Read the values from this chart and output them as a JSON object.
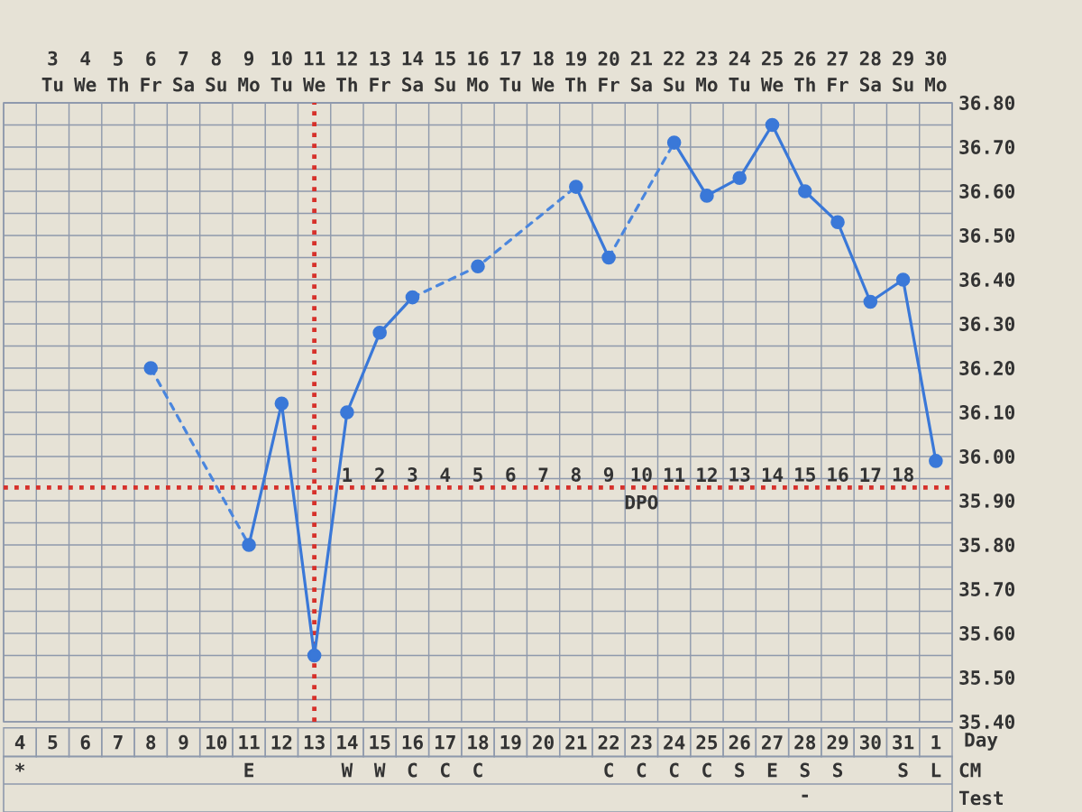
{
  "chart_data": [
    {
      "type": "line",
      "categories": [
        "4",
        "5",
        "6",
        "7",
        "8",
        "9",
        "10",
        "11",
        "12",
        "13",
        "14",
        "15",
        "16",
        "17",
        "18",
        "19",
        "20",
        "21",
        "22",
        "23",
        "24",
        "25",
        "26",
        "27",
        "28",
        "29",
        "30",
        "31",
        "1"
      ],
      "xlabel": "Day",
      "x2lim": [
        1.5,
        30.5
      ],
      "x2ticks": [
        {
          "value": 3,
          "label": "3 Tu"
        },
        {
          "value": 4,
          "label": "4 We"
        },
        {
          "value": 5,
          "label": "5 Th"
        },
        {
          "value": 6,
          "label": "6 Fr"
        },
        {
          "value": 7,
          "label": "7 Sa"
        },
        {
          "value": 8,
          "label": "8 Su"
        },
        {
          "value": 9,
          "label": "9 Mo"
        },
        {
          "value": 10,
          "label": "10 Tu"
        },
        {
          "value": 11,
          "label": "11 We"
        },
        {
          "value": 12,
          "label": "12 Th"
        },
        {
          "value": 13,
          "label": "13 Fr"
        },
        {
          "value": 14,
          "label": "14 Sa"
        },
        {
          "value": 15,
          "label": "15 Su"
        },
        {
          "value": 16,
          "label": "16 Mo"
        },
        {
          "value": 17,
          "label": "17 Tu"
        },
        {
          "value": 18,
          "label": "18 We"
        },
        {
          "value": 19,
          "label": "19 Th"
        },
        {
          "value": 20,
          "label": "20 Fr"
        },
        {
          "value": 21,
          "label": "21 Sa"
        },
        {
          "value": 22,
          "label": "22 Su"
        },
        {
          "value": 23,
          "label": "23 Mo"
        },
        {
          "value": 24,
          "label": "24 Tu"
        },
        {
          "value": 25,
          "label": "25 We"
        },
        {
          "value": 26,
          "label": "26 Th"
        },
        {
          "value": 27,
          "label": "27 Fr"
        },
        {
          "value": 28,
          "label": "28 Sa"
        },
        {
          "value": 29,
          "label": "29 Su"
        },
        {
          "value": 30,
          "label": "30 Mo"
        }
      ],
      "ylim": [
        35.4,
        36.8
      ],
      "yticks": [
        {
          "value": 35.4,
          "label": "35.40"
        },
        {
          "value": 35.45,
          "label": null
        },
        {
          "value": 35.5,
          "label": "35.50"
        },
        {
          "value": 35.55,
          "label": null
        },
        {
          "value": 35.6,
          "label": "35.60"
        },
        {
          "value": 35.65,
          "label": null
        },
        {
          "value": 35.7,
          "label": "35.70"
        },
        {
          "value": 35.75,
          "label": null
        },
        {
          "value": 35.8,
          "label": "35.80"
        },
        {
          "value": 35.85,
          "label": null
        },
        {
          "value": 35.9,
          "label": "35.90"
        },
        {
          "value": 35.95,
          "label": null
        },
        {
          "value": 36.0,
          "label": "36.00"
        },
        {
          "value": 36.05,
          "label": null
        },
        {
          "value": 36.1,
          "label": "36.10"
        },
        {
          "value": 36.15,
          "label": null
        },
        {
          "value": 36.2,
          "label": "36.20"
        },
        {
          "value": 36.25,
          "label": null
        },
        {
          "value": 36.3,
          "label": "36.30"
        },
        {
          "value": 36.35,
          "label": null
        },
        {
          "value": 36.4,
          "label": "36.40"
        },
        {
          "value": 36.45,
          "label": null
        },
        {
          "value": 36.5,
          "label": "36.50"
        },
        {
          "value": 36.55,
          "label": null
        },
        {
          "value": 36.6,
          "label": "36.60"
        },
        {
          "value": 36.65,
          "label": null
        },
        {
          "value": 36.7,
          "label": "36.70"
        },
        {
          "value": 36.75,
          "label": null
        },
        {
          "value": 36.8,
          "label": "36.80"
        }
      ],
      "grid": true,
      "series": [
        {
          "color": "#3a78d8",
          "line_style": "solid",
          "marker": "circle",
          "values": [
            null,
            null,
            null,
            null,
            36.2,
            null,
            null,
            35.8,
            36.12,
            35.55,
            36.1,
            36.28,
            36.36,
            null,
            36.43,
            null,
            null,
            36.61,
            36.45,
            null,
            36.71,
            36.59,
            36.63,
            36.75,
            36.6,
            36.53,
            36.35,
            36.4,
            35.99
          ]
        },
        {
          "color": "#4a86de",
          "line_style": "dashed",
          "x": [
            "8",
            "11",
            "13",
            "16",
            "18",
            "21",
            "22",
            "22",
            "24"
          ],
          "values": [
            36.2,
            35.8,
            null,
            36.36,
            36.43,
            36.61,
            null,
            36.45,
            36.71
          ]
        }
      ],
      "ref_lines": [
        {
          "axis": "y",
          "value": 35.93,
          "color": "#d6312b",
          "line_style": "dotted"
        },
        {
          "axis": "x2",
          "value": 11,
          "color": "#d6312b",
          "line_style": "dotted"
        }
      ],
      "annotations": [
        "1",
        "2",
        "3",
        "4",
        "5",
        "6",
        "7",
        "8",
        "9",
        "10",
        "11",
        "12",
        "13",
        "14",
        "15",
        "16",
        "17",
        "18",
        "DPO"
      ]
    },
    {
      "type": "other",
      "y2_categories": [
        "CM",
        "Test"
      ],
      "cell_labels": [
        [
          "*",
          null,
          null,
          null,
          null,
          null,
          null,
          "E",
          null,
          null,
          "W",
          "W",
          "C",
          "C",
          "C",
          null,
          null,
          null,
          "C",
          "C",
          "C",
          "C",
          "S",
          "E",
          "S",
          "S",
          null,
          "S",
          "L"
        ],
        [
          null,
          null,
          null,
          null,
          null,
          null,
          null,
          null,
          null,
          null,
          null,
          null,
          null,
          null,
          null,
          null,
          null,
          null,
          null,
          null,
          null,
          null,
          null,
          null,
          "-",
          null,
          null,
          null,
          null
        ]
      ]
    }
  ]
}
